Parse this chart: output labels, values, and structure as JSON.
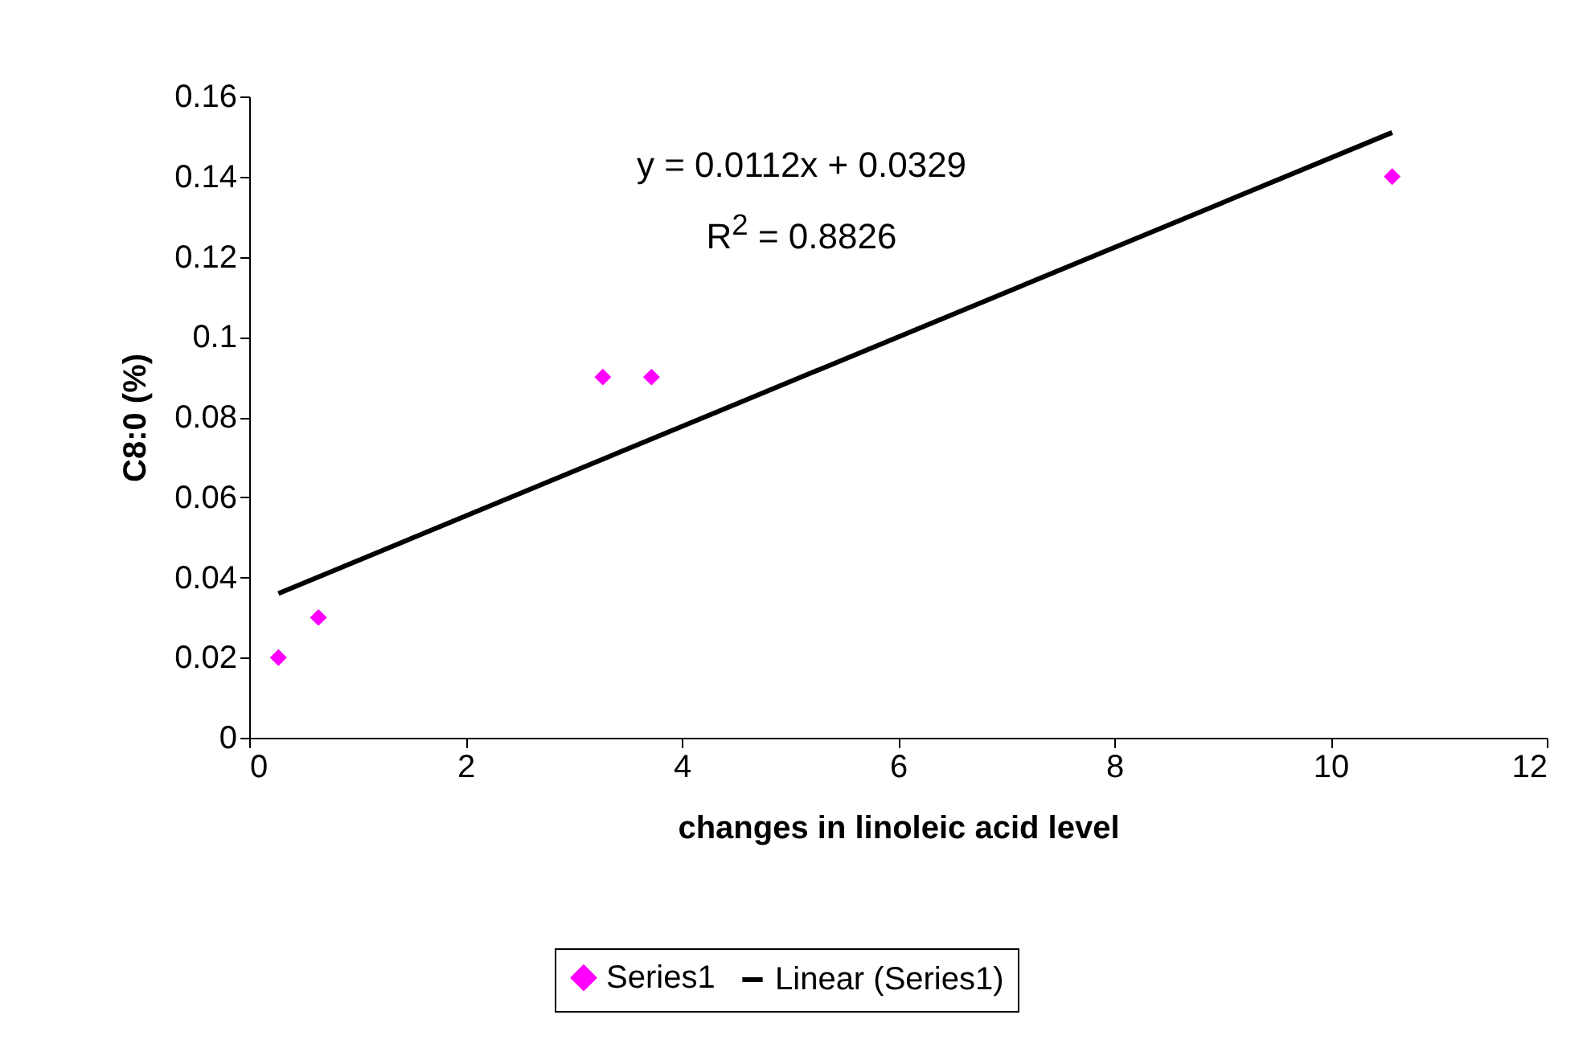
{
  "chart_data": {
    "type": "scatter",
    "xlabel": "changes  in linoleic acid level",
    "ylabel": "C8:0 (%)",
    "annotations": [
      "y = 0.0112x + 0.0329",
      "R$^{2}$ = 0.8826"
    ],
    "xlim": [
      0,
      12
    ],
    "xticks": [
      0,
      2,
      4,
      6,
      8,
      10,
      12
    ],
    "ylim": [
      0,
      0.16
    ],
    "yticks": [
      0,
      0.02,
      0.04,
      0.06,
      0.08,
      0.1,
      0.12,
      0.14,
      0.16
    ],
    "grid": false,
    "legend": "bottom",
    "series": [
      {
        "name": "Series1",
        "marker": "diamond",
        "color": "#ff00ff",
        "x": [
          0.27,
          0.64,
          3.27,
          3.72,
          10.57
        ],
        "values": [
          0.02,
          0.03,
          0.09,
          0.09,
          0.14
        ]
      },
      {
        "name": "Linear (Series1)",
        "type": "line",
        "color": "#000000",
        "x": [
          0.27,
          10.57
        ],
        "values": [
          0.036,
          0.151
        ]
      }
    ]
  }
}
